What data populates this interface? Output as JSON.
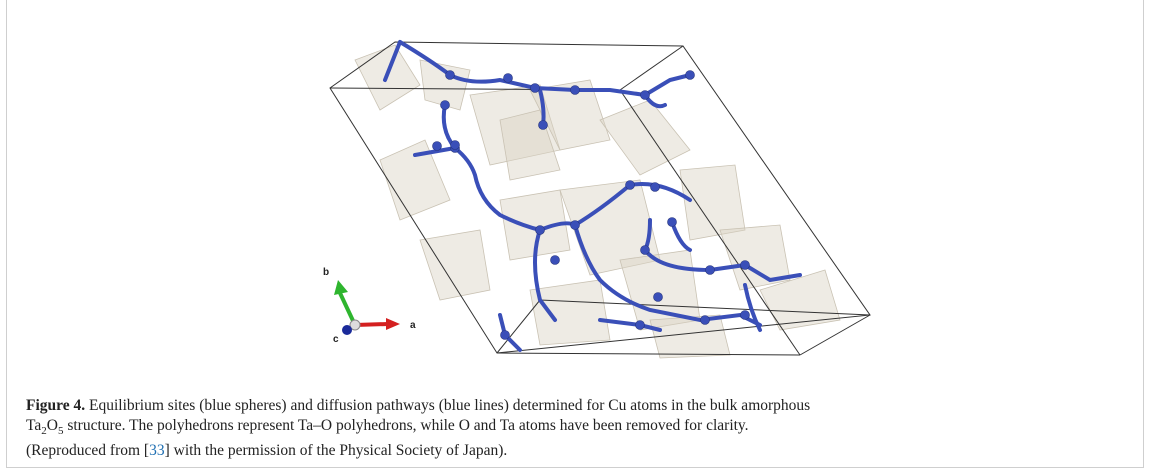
{
  "figure": {
    "axes": {
      "b": "b",
      "a": "a",
      "c": "c"
    },
    "caption": {
      "label": "Figure 4.",
      "text_1": " Equilibrium sites (blue spheres) and diffusion pathways (blue lines) determined for Cu atoms in the bulk amorphous",
      "ta": "Ta",
      "sub_2": "2",
      "o": "O",
      "sub_5": "5",
      "text_2": " structure. The polyhedrons represent Ta–O polyhedrons, while O and Ta atoms have been removed for clarity.",
      "text_3": "(Reproduced from [",
      "ref": "33",
      "text_4": "] with the permission of the Physical Society of Japan)."
    }
  }
}
